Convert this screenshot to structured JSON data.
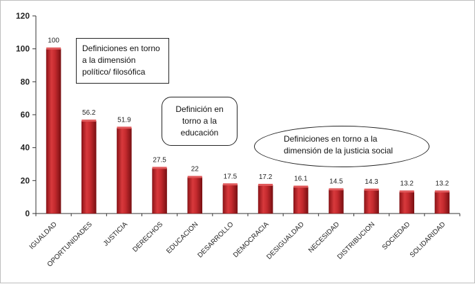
{
  "chart_data": {
    "type": "bar",
    "categories": [
      "IGUALDAD",
      "OPORTUNIDADES",
      "JUSTICIA",
      "DERECHOS",
      "EDUCACION",
      "DESARROLLO",
      "DEMOCRACIA",
      "DESIGUALDAD",
      "NECESIDAD",
      "DISTRIBUCION",
      "SOCIEDAD",
      "SOLIDARIDAD"
    ],
    "values": [
      100,
      56.2,
      51.9,
      27.5,
      22,
      17.5,
      17.2,
      16.1,
      14.5,
      14.3,
      13.2,
      13.2
    ],
    "data_labels": [
      "100",
      "56.2",
      "51.9",
      "27.5",
      "22",
      "17.5",
      "17.2",
      "16.1",
      "14.5",
      "14.3",
      "13.2",
      "13.2"
    ],
    "ylim": [
      0,
      120
    ],
    "yticks": [
      0,
      20,
      40,
      60,
      80,
      100,
      120
    ],
    "grid": false,
    "legend": "none",
    "title": "",
    "xlabel": "",
    "ylabel": "",
    "bar_color": "#c0282c",
    "annotations": [
      "Definiciones en torno a la dimensión político/ filosófica",
      "Definición en torno a la educación",
      "Definiciones en torno a la dimensión de la justicia social"
    ]
  }
}
